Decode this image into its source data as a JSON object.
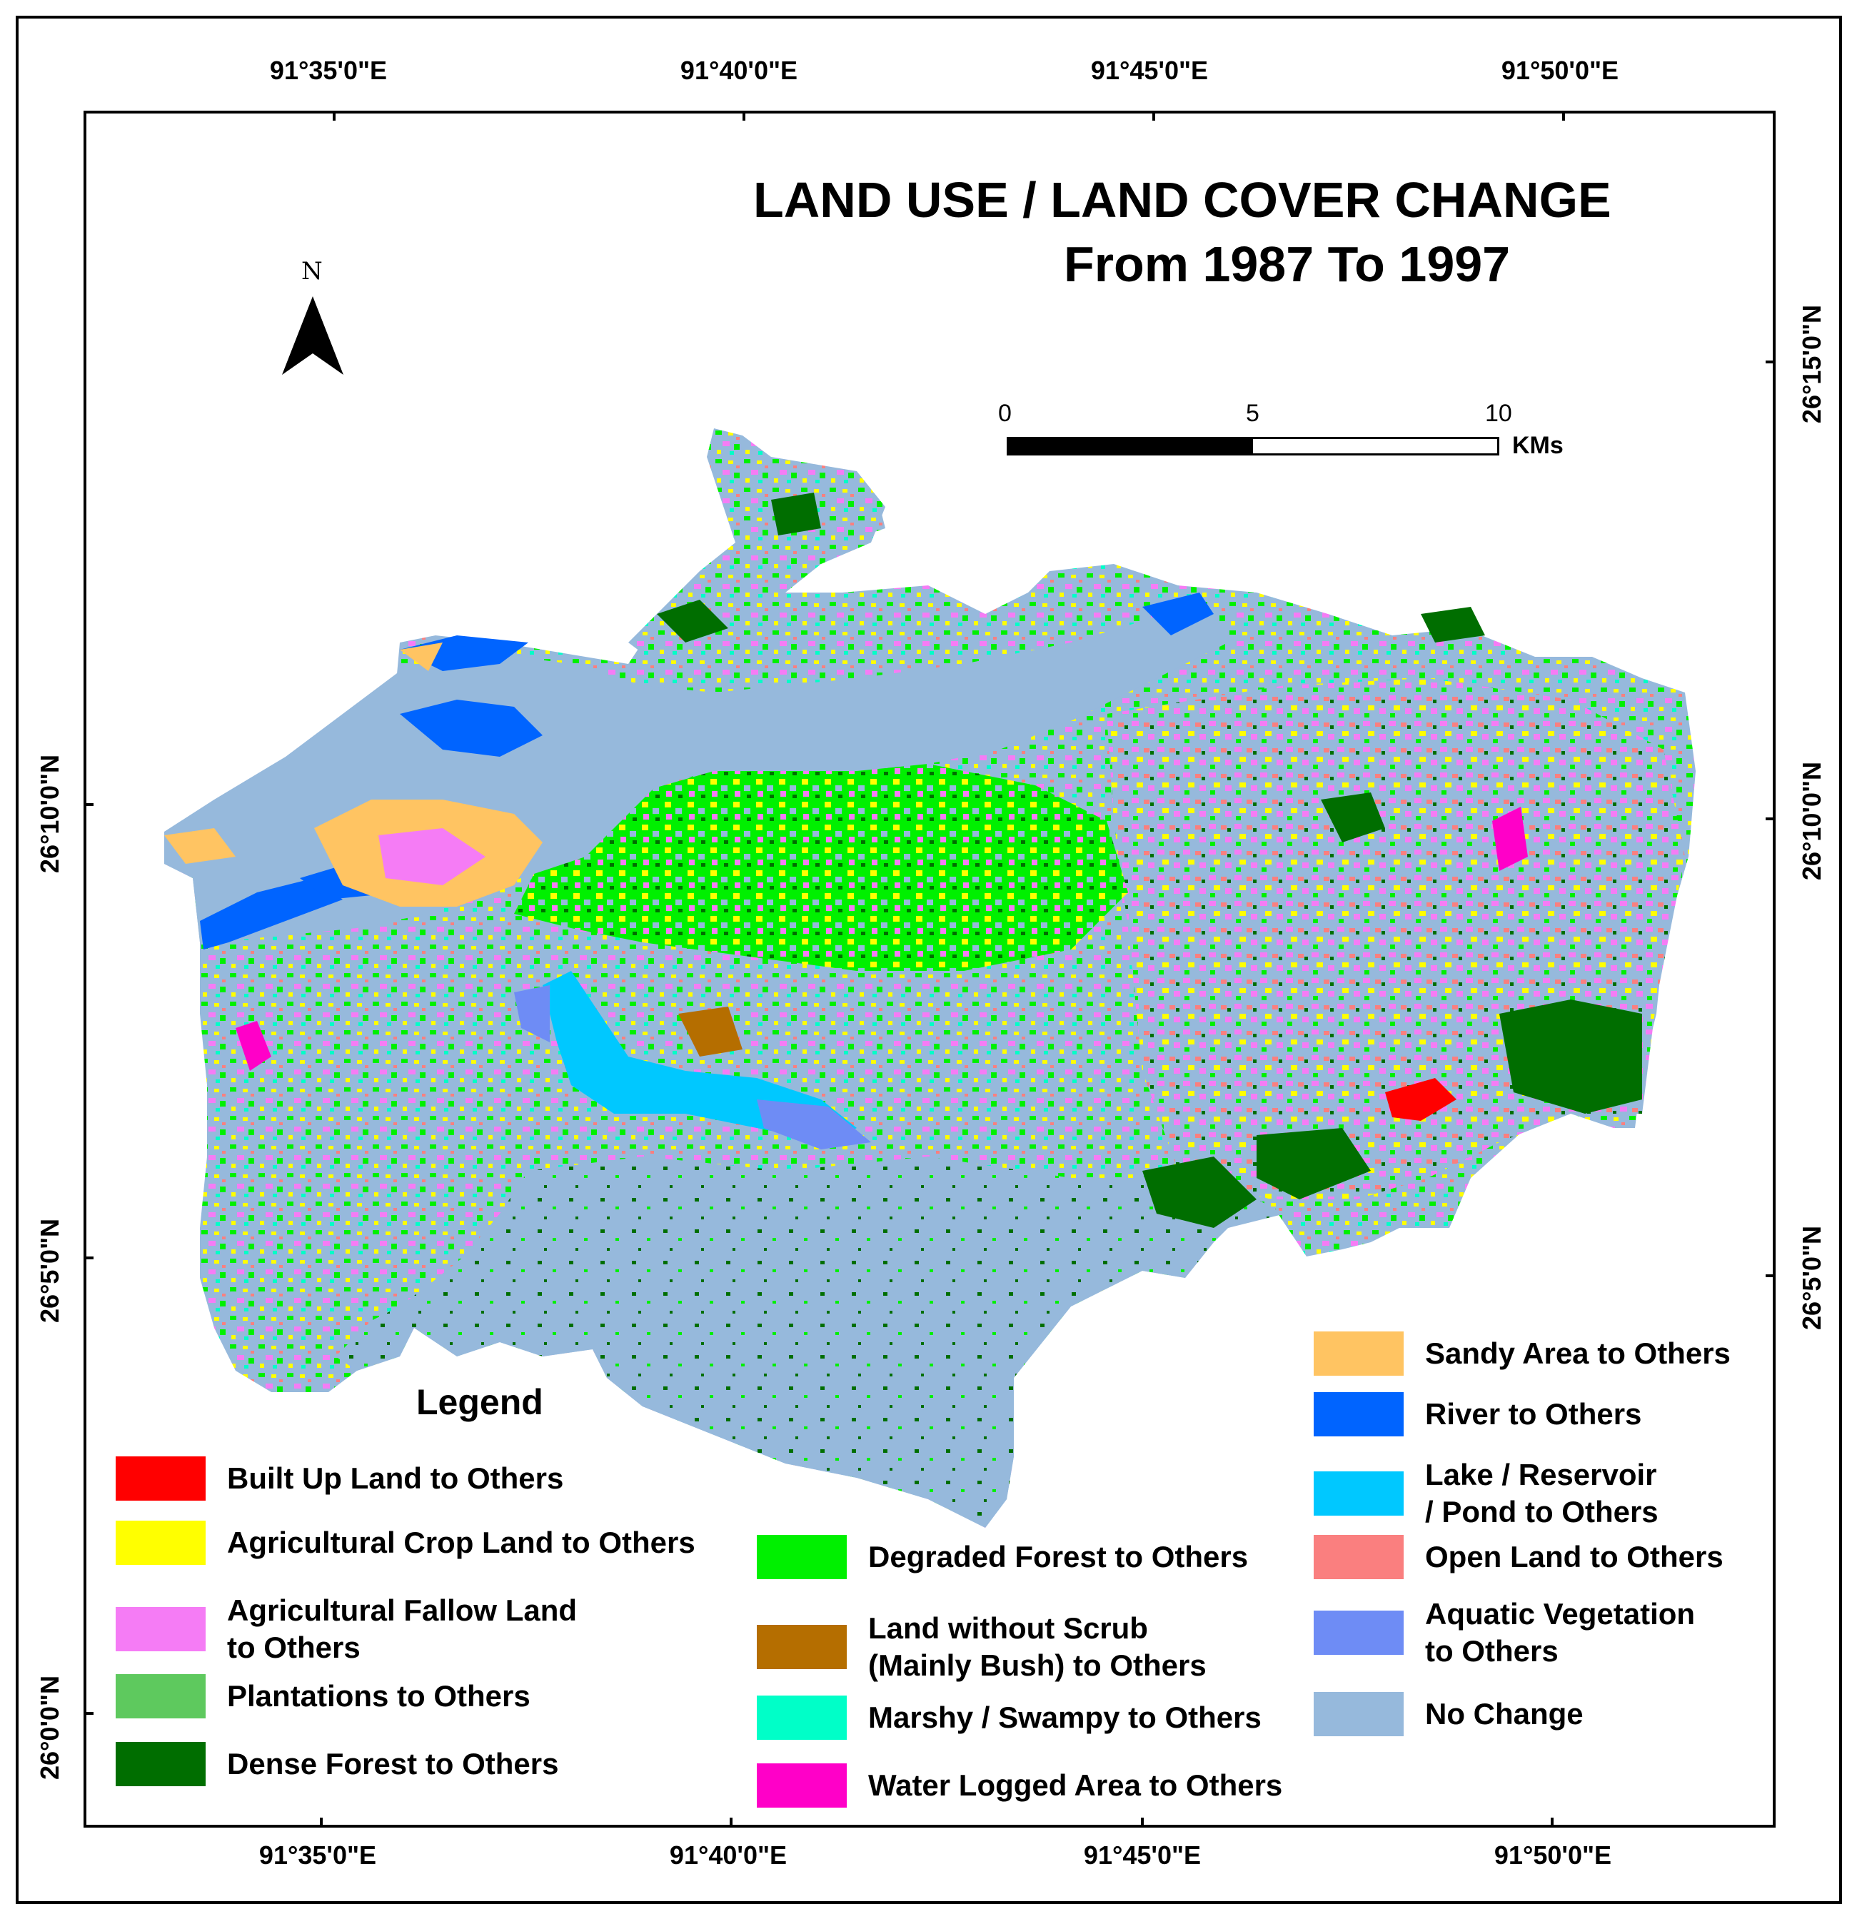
{
  "title": {
    "line1": "LAND USE / LAND COVER CHANGE",
    "line2": "From 1987 To 1997"
  },
  "north_arrow": {
    "label": "N"
  },
  "scale_bar": {
    "ticks": [
      "0",
      "5",
      "10"
    ],
    "units": "KMs"
  },
  "coordinates": {
    "top": [
      "91°35'0\"E",
      "91°40'0\"E",
      "91°45'0\"E",
      "91°50'0\"E"
    ],
    "bottom": [
      "91°35'0\"E",
      "91°40'0\"E",
      "91°45'0\"E",
      "91°50'0\"E"
    ],
    "left": [
      "26°10'0\"N",
      "26°5'0\"N",
      "26°0'0\"N"
    ],
    "right": [
      "26°15'0\"N",
      "26°10'0\"N",
      "26°5'0\"N"
    ]
  },
  "legend": {
    "title": "Legend",
    "items": [
      {
        "label_lines": [
          "Built Up Land to Others"
        ],
        "color": "#ff0000"
      },
      {
        "label_lines": [
          "Agricultural Crop Land to Others"
        ],
        "color": "#ffff00"
      },
      {
        "label_lines": [
          "Agricultural Fallow Land",
          "to Others"
        ],
        "color": "#f57cf5"
      },
      {
        "label_lines": [
          "Plantations to Others"
        ],
        "color": "#5ec95e"
      },
      {
        "label_lines": [
          "Dense Forest to Others"
        ],
        "color": "#006e00"
      },
      {
        "label_lines": [
          "Degraded Forest to Others"
        ],
        "color": "#00f000"
      },
      {
        "label_lines": [
          "Land without Scrub",
          "(Mainly Bush) to Others"
        ],
        "color": "#b56e00"
      },
      {
        "label_lines": [
          "Marshy / Swampy to Others"
        ],
        "color": "#00ffc8"
      },
      {
        "label_lines": [
          "Water Logged Area to Others"
        ],
        "color": "#ff00c8"
      },
      {
        "label_lines": [
          "Sandy Area to Others"
        ],
        "color": "#ffc462"
      },
      {
        "label_lines": [
          "River to Others"
        ],
        "color": "#0064ff"
      },
      {
        "label_lines": [
          "Lake / Reservoir",
          "/ Pond to Others"
        ],
        "color": "#00c8ff"
      },
      {
        "label_lines": [
          "Open Land to Others"
        ],
        "color": "#fa7f7f"
      },
      {
        "label_lines": [
          "Aquatic Vegetation",
          "to Others"
        ],
        "color": "#6e8cf5"
      },
      {
        "label_lines": [
          "No Change"
        ],
        "color": "#96b9dc"
      }
    ]
  }
}
